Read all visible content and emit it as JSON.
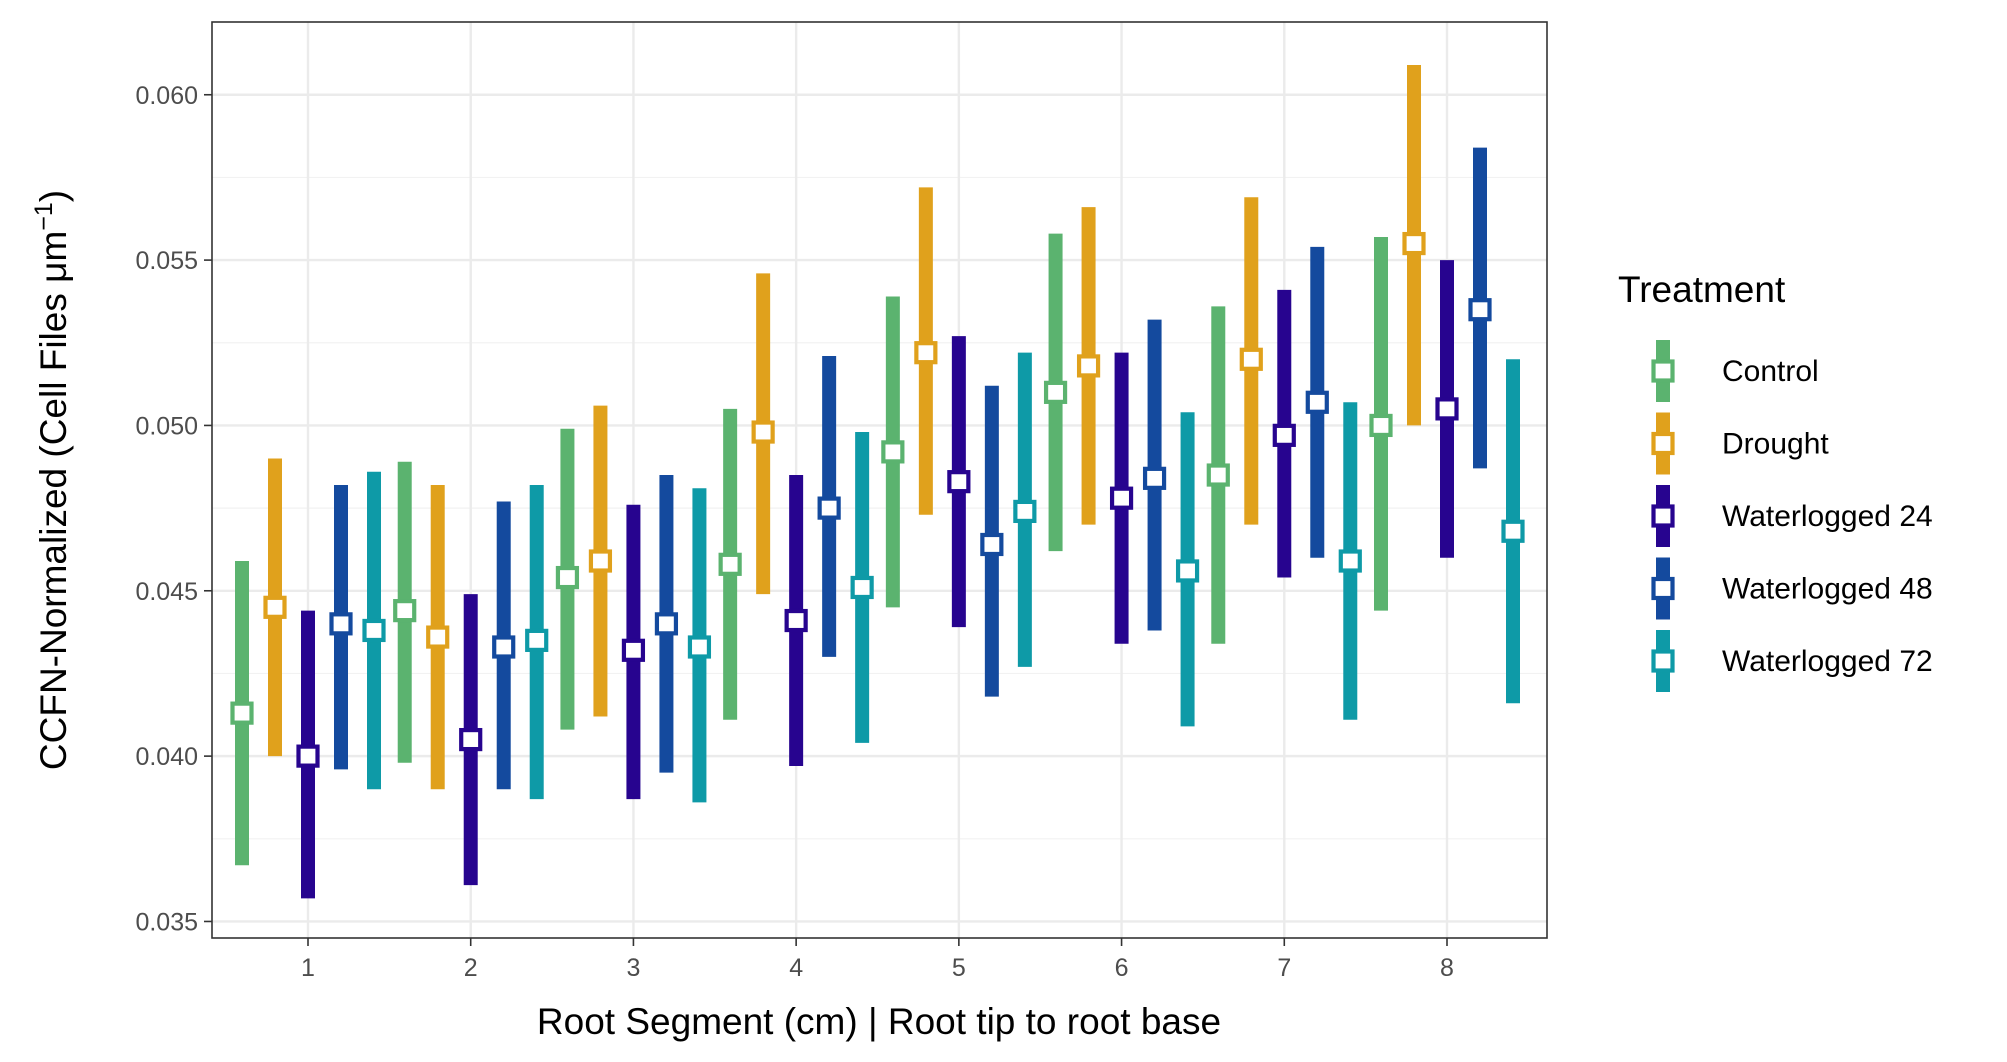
{
  "chart_data": {
    "type": "errorbar",
    "xlabel": "Root Segment (cm) | Root tip to root base",
    "ylabel_main": "CCFN-Normalized (Cell Files μm",
    "ylabel_sup": "−1",
    "ylabel_close": ")",
    "categories": [
      "1",
      "2",
      "3",
      "4",
      "5",
      "6",
      "7",
      "8"
    ],
    "ylim": [
      0.0345,
      0.0622
    ],
    "yticks": [
      "0.035",
      "0.040",
      "0.045",
      "0.050",
      "0.055",
      "0.060"
    ],
    "grid": true,
    "legend": {
      "title": "Treatment",
      "position": "right"
    },
    "series": [
      {
        "name": "Control",
        "color": "#5BB36F",
        "mean": [
          0.0413,
          0.0444,
          0.0454,
          0.0458,
          0.0492,
          0.051,
          0.0485,
          0.05
        ],
        "lower": [
          0.0367,
          0.0398,
          0.0408,
          0.0411,
          0.0445,
          0.0462,
          0.0434,
          0.0444
        ],
        "upper": [
          0.0459,
          0.0489,
          0.0499,
          0.0505,
          0.0539,
          0.0558,
          0.0536,
          0.0557
        ]
      },
      {
        "name": "Drought",
        "color": "#E0A11C",
        "mean": [
          0.0445,
          0.0436,
          0.0459,
          0.0498,
          0.0522,
          0.0518,
          0.052,
          0.0555
        ],
        "lower": [
          0.04,
          0.039,
          0.0412,
          0.0449,
          0.0473,
          0.047,
          0.047,
          0.05
        ],
        "upper": [
          0.049,
          0.0482,
          0.0506,
          0.0546,
          0.0572,
          0.0566,
          0.0569,
          0.0609
        ]
      },
      {
        "name": "Waterlogged 24",
        "color": "#27048F",
        "mean": [
          0.04,
          0.0405,
          0.0432,
          0.0441,
          0.0483,
          0.0478,
          0.0497,
          0.0505
        ],
        "lower": [
          0.0357,
          0.0361,
          0.0387,
          0.0397,
          0.0439,
          0.0434,
          0.0454,
          0.046
        ],
        "upper": [
          0.0444,
          0.0449,
          0.0476,
          0.0485,
          0.0527,
          0.0522,
          0.0541,
          0.055
        ]
      },
      {
        "name": "Waterlogged 48",
        "color": "#144A9E",
        "mean": [
          0.044,
          0.0433,
          0.044,
          0.0475,
          0.0464,
          0.0484,
          0.0507,
          0.0535
        ],
        "lower": [
          0.0396,
          0.039,
          0.0395,
          0.043,
          0.0418,
          0.0438,
          0.046,
          0.0487
        ],
        "upper": [
          0.0482,
          0.0477,
          0.0485,
          0.0521,
          0.0512,
          0.0532,
          0.0554,
          0.0584
        ]
      },
      {
        "name": "Waterlogged 72",
        "color": "#0E9AA7",
        "mean": [
          0.0438,
          0.0435,
          0.0433,
          0.0451,
          0.0474,
          0.0456,
          0.0459,
          0.0468
        ],
        "lower": [
          0.039,
          0.0387,
          0.0386,
          0.0404,
          0.0427,
          0.0409,
          0.0411,
          0.0416
        ],
        "upper": [
          0.0486,
          0.0482,
          0.0481,
          0.0498,
          0.0522,
          0.0504,
          0.0507,
          0.052
        ]
      }
    ]
  }
}
